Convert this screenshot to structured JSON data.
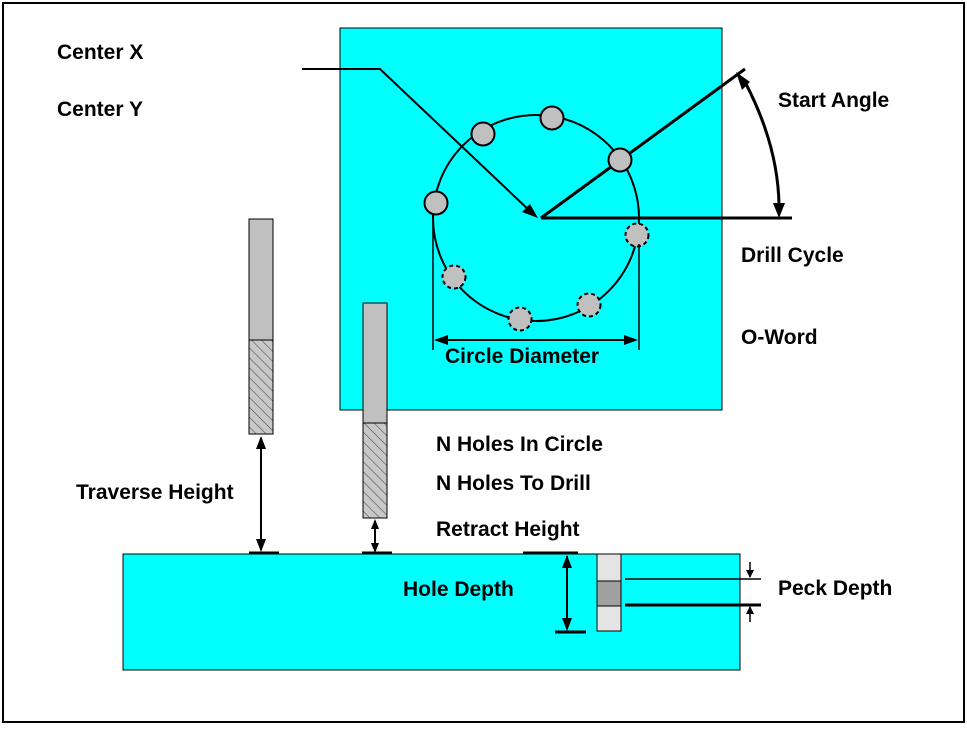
{
  "colors": {
    "plate": "#00ffff",
    "tool": "#c0c0c0",
    "peck": "#a0a0a0",
    "peck_light": "#e4e4e4",
    "line": "#000000"
  },
  "labels": {
    "center_x": "Center X",
    "center_y": "Center Y",
    "start_angle": "Start Angle",
    "drill_cycle": "Drill Cycle",
    "o_word": "O-Word",
    "circle_diameter": "Circle Diameter",
    "n_holes_in_circle": "N Holes In Circle",
    "n_holes_to_drill": "N Holes To Drill",
    "retract_height": "Retract Height",
    "traverse_height": "Traverse Height",
    "hole_depth": "Hole Depth",
    "peck_depth": "Peck Depth"
  }
}
